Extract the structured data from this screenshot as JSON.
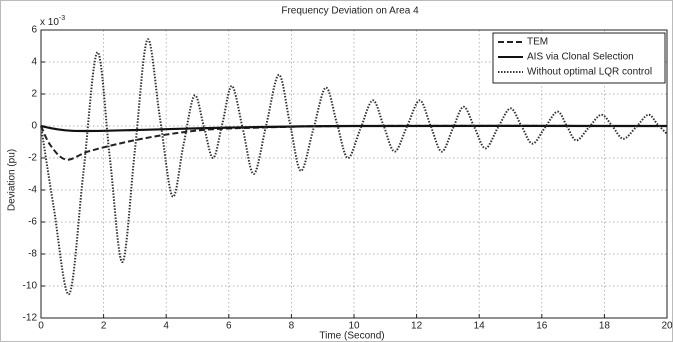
{
  "chart_data": {
    "type": "line",
    "title": "Frequency Deviation on Area 4",
    "xlabel": "Time (Second)",
    "ylabel": "Deviation (pu)",
    "y_multiplier": {
      "base": "x 10",
      "exponent": "-3"
    },
    "xlim": [
      0,
      20
    ],
    "xticks": [
      0,
      2,
      4,
      6,
      8,
      10,
      12,
      14,
      16,
      18,
      20
    ],
    "ylim": [
      -12,
      6
    ],
    "yticks": [
      -12,
      -10,
      -8,
      -6,
      -4,
      -2,
      0,
      2,
      4,
      6
    ],
    "grid": true,
    "legend": "upper right",
    "series": [
      {
        "name": "TEM",
        "color": "#222222",
        "dash": "dashed",
        "x": [
          0,
          0.3,
          0.8,
          1.5,
          2.5,
          3.5,
          4.5,
          5.5,
          7,
          10,
          20
        ],
        "values": [
          0,
          -1.2,
          -2.1,
          -1.6,
          -1.1,
          -0.7,
          -0.4,
          -0.2,
          -0.1,
          0,
          0
        ]
      },
      {
        "name": "AIS via Clonal Selection",
        "color": "#111111",
        "dash": "solid",
        "x": [
          0,
          0.5,
          1,
          2,
          4,
          6,
          10,
          20
        ],
        "values": [
          0,
          -0.2,
          -0.3,
          -0.3,
          -0.2,
          -0.1,
          0,
          0
        ]
      },
      {
        "name": "Without optimal LQR control",
        "color": "#333333",
        "dash": "dotted",
        "x": [
          0,
          0.4,
          0.9,
          1.35,
          1.8,
          2.2,
          2.6,
          3.0,
          3.4,
          3.8,
          4.2,
          4.55,
          4.9,
          5.2,
          5.5,
          5.8,
          6.1,
          6.45,
          6.8,
          7.2,
          7.6,
          7.95,
          8.3,
          8.7,
          9.1,
          9.45,
          9.8,
          10.2,
          10.6,
          10.95,
          11.3,
          11.7,
          12.1,
          12.45,
          12.8,
          13.15,
          13.5,
          13.85,
          14.2,
          14.6,
          15.0,
          15.35,
          15.7,
          16.1,
          16.5,
          16.8,
          17.1,
          17.5,
          17.9,
          18.25,
          18.6,
          19.0,
          19.4,
          19.7,
          20
        ],
        "values": [
          0,
          -5,
          -10.5,
          -3,
          4.6,
          -2,
          -8.5,
          -1.5,
          5.4,
          0.5,
          -4.4,
          -1.2,
          1.9,
          0,
          -2.0,
          0.2,
          2.5,
          -0.2,
          -3.0,
          0.1,
          3.2,
          0.2,
          -2.8,
          -0.2,
          2.4,
          0.2,
          -2.0,
          -0.2,
          1.6,
          0,
          -1.6,
          0,
          1.6,
          0,
          -1.6,
          -0.2,
          1.2,
          -0.1,
          -1.4,
          -0.1,
          1.1,
          0,
          -1.1,
          -0.1,
          0.9,
          0,
          -0.9,
          -0.1,
          0.7,
          0,
          -0.8,
          -0.1,
          0.7,
          0.1,
          -0.5
        ]
      }
    ]
  }
}
